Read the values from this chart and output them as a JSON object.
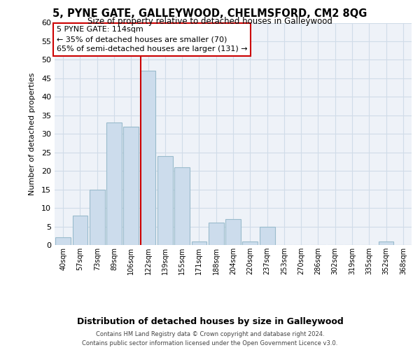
{
  "title": "5, PYNE GATE, GALLEYWOOD, CHELMSFORD, CM2 8QG",
  "subtitle": "Size of property relative to detached houses in Galleywood",
  "xlabel": "Distribution of detached houses by size in Galleywood",
  "ylabel": "Number of detached properties",
  "bar_labels": [
    "40sqm",
    "57sqm",
    "73sqm",
    "89sqm",
    "106sqm",
    "122sqm",
    "139sqm",
    "155sqm",
    "171sqm",
    "188sqm",
    "204sqm",
    "220sqm",
    "237sqm",
    "253sqm",
    "270sqm",
    "286sqm",
    "302sqm",
    "319sqm",
    "335sqm",
    "352sqm",
    "368sqm"
  ],
  "bar_values": [
    2,
    8,
    15,
    33,
    32,
    47,
    24,
    21,
    1,
    6,
    7,
    1,
    5,
    0,
    0,
    0,
    0,
    0,
    0,
    1,
    0
  ],
  "bar_color": "#ccdcec",
  "bar_edge_color": "#99bbcc",
  "highlight_line_color": "#cc0000",
  "ylim": [
    0,
    60
  ],
  "yticks": [
    0,
    5,
    10,
    15,
    20,
    25,
    30,
    35,
    40,
    45,
    50,
    55,
    60
  ],
  "annotation_title": "5 PYNE GATE: 114sqm",
  "annotation_line1": "← 35% of detached houses are smaller (70)",
  "annotation_line2": "65% of semi-detached houses are larger (131) →",
  "annotation_box_color": "#ffffff",
  "annotation_box_edge": "#cc0000",
  "grid_color": "#d0dce8",
  "background_color": "#eef2f8",
  "footer_line1": "Contains HM Land Registry data © Crown copyright and database right 2024.",
  "footer_line2": "Contains public sector information licensed under the Open Government Licence v3.0."
}
